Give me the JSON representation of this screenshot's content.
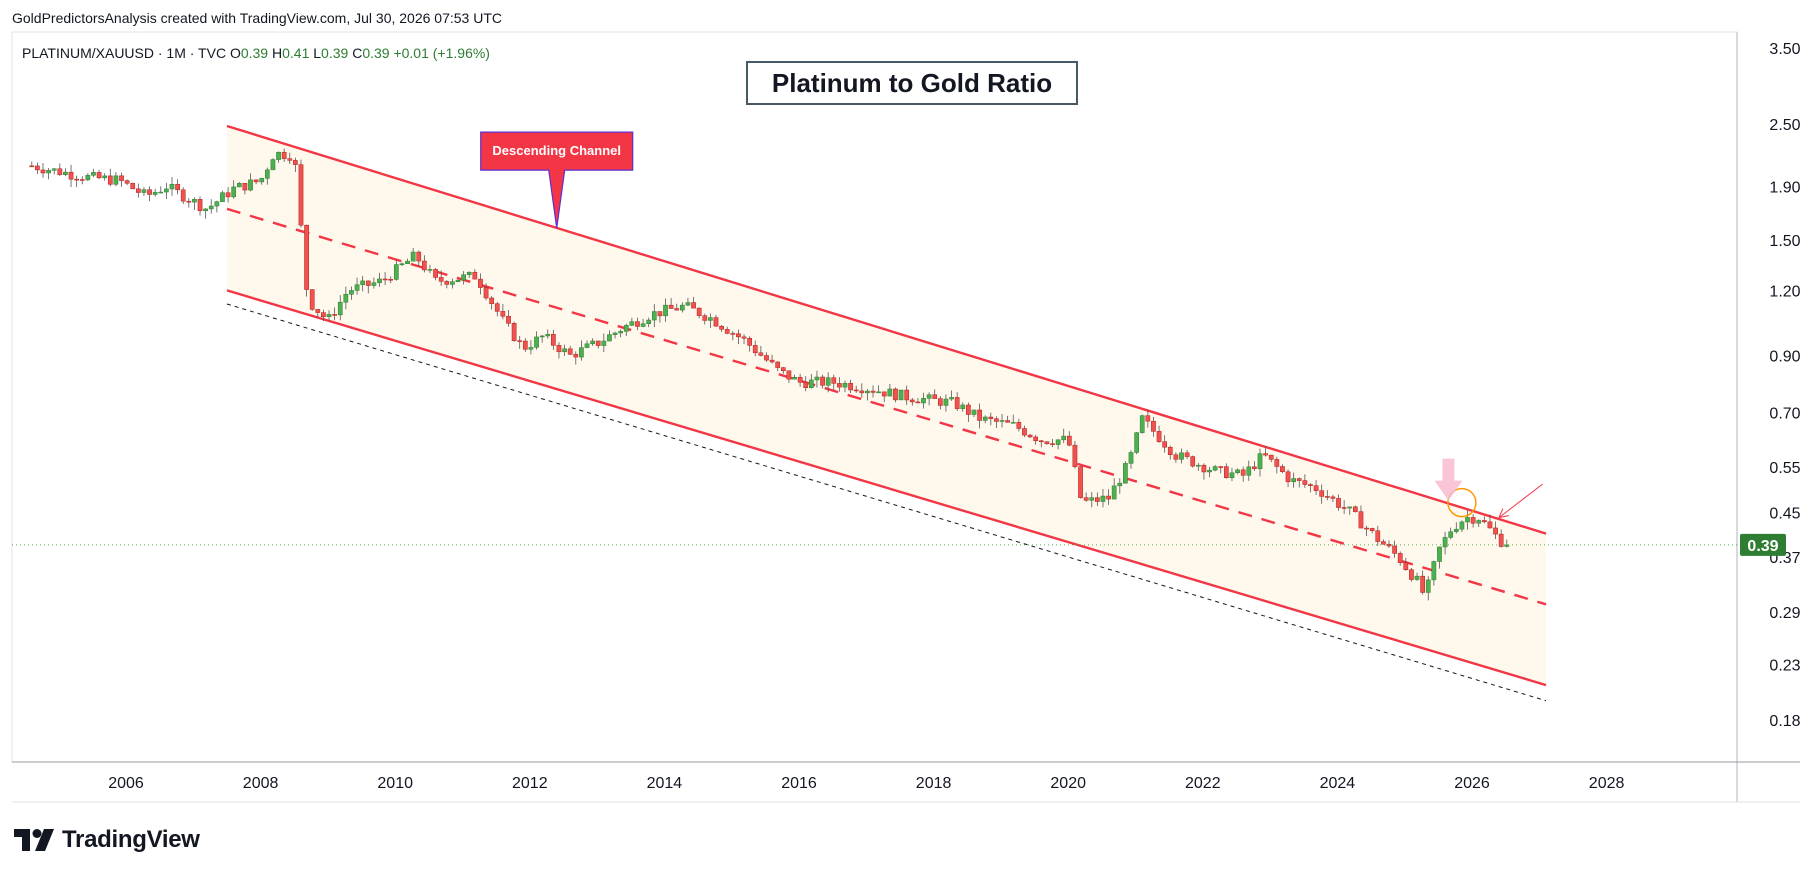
{
  "header": {
    "attribution": "GoldPredictorsAnalysis created with TradingView.com, Jul 30, 2026 07:53 UTC"
  },
  "legend": {
    "symbol": "PLATINUM/XAUUSD · 1M · TVC",
    "open_label": "O",
    "open": "0.39",
    "high_label": "H",
    "high": "0.41",
    "low_label": "L",
    "low": "0.39",
    "close_label": "C",
    "close": "0.39",
    "change": "+0.01 (+1.96%)"
  },
  "price_tag": "0.39",
  "footer": {
    "brand": "TradingView",
    "logo_icon": "tradingview-logo-icon"
  },
  "colors": {
    "up": "#26a69a",
    "up_dark": "#2e7d32",
    "down": "#ef5350",
    "channel": "#f23645",
    "channel_fill": "#fff3e0",
    "price_line": "#4caf50",
    "title_border": "#455a64",
    "callout": "#f23645",
    "callout_border": "#5c2fd1"
  },
  "chart_data": {
    "type": "candlestick",
    "title": "Platinum to Gold Ratio",
    "yscale": "log",
    "ylim": [
      0.155,
      4.1
    ],
    "xlim": [
      2004.6,
      2031.3
    ],
    "x_ticks": [
      "2006",
      "2008",
      "2010",
      "2012",
      "2014",
      "2016",
      "2018",
      "2020",
      "2022",
      "2024",
      "2026",
      "2028"
    ],
    "y_ticks": [
      "3.50",
      "2.50",
      "1.90",
      "1.50",
      "1.20",
      "0.90",
      "0.70",
      "0.55",
      "0.45",
      "0.37",
      "0.29",
      "0.23",
      "0.18"
    ],
    "anchors": [
      [
        2004.6,
        2.08
      ],
      [
        2005.4,
        1.98
      ],
      [
        2005.9,
        1.95
      ],
      [
        2006.3,
        1.82
      ],
      [
        2006.6,
        1.9
      ],
      [
        2007.2,
        1.72
      ],
      [
        2007.6,
        1.88
      ],
      [
        2008.0,
        1.95
      ],
      [
        2008.2,
        2.2
      ],
      [
        2008.5,
        2.18
      ],
      [
        2008.7,
        1.15
      ],
      [
        2009.0,
        1.05
      ],
      [
        2009.3,
        1.2
      ],
      [
        2009.8,
        1.25
      ],
      [
        2010.3,
        1.4
      ],
      [
        2010.6,
        1.25
      ],
      [
        2011.2,
        1.28
      ],
      [
        2011.6,
        1.05
      ],
      [
        2011.9,
        0.93
      ],
      [
        2012.2,
        0.98
      ],
      [
        2012.6,
        0.9
      ],
      [
        2013.0,
        0.95
      ],
      [
        2013.4,
        1.02
      ],
      [
        2013.8,
        1.08
      ],
      [
        2014.3,
        1.12
      ],
      [
        2014.7,
        1.06
      ],
      [
        2015.2,
        0.96
      ],
      [
        2015.7,
        0.84
      ],
      [
        2016.0,
        0.8
      ],
      [
        2016.5,
        0.8
      ],
      [
        2017.0,
        0.78
      ],
      [
        2017.6,
        0.75
      ],
      [
        2018.3,
        0.73
      ],
      [
        2018.7,
        0.68
      ],
      [
        2019.2,
        0.66
      ],
      [
        2019.6,
        0.62
      ],
      [
        2020.0,
        0.62
      ],
      [
        2020.2,
        0.47
      ],
      [
        2020.6,
        0.48
      ],
      [
        2020.9,
        0.56
      ],
      [
        2021.1,
        0.68
      ],
      [
        2021.6,
        0.58
      ],
      [
        2022.2,
        0.54
      ],
      [
        2022.6,
        0.53
      ],
      [
        2022.9,
        0.58
      ],
      [
        2023.3,
        0.52
      ],
      [
        2023.7,
        0.5
      ],
      [
        2024.2,
        0.45
      ],
      [
        2024.6,
        0.4
      ],
      [
        2024.9,
        0.37
      ],
      [
        2025.2,
        0.33
      ],
      [
        2025.3,
        0.31
      ],
      [
        2025.5,
        0.38
      ],
      [
        2025.7,
        0.42
      ],
      [
        2025.9,
        0.44
      ],
      [
        2026.1,
        0.44
      ],
      [
        2026.4,
        0.4
      ],
      [
        2026.5,
        0.39
      ]
    ],
    "last_close": 0.39,
    "channel": {
      "upper": [
        [
          2007.5,
          2.48
        ],
        [
          2027.1,
          0.41
        ]
      ],
      "middle": [
        [
          2007.5,
          1.72
        ],
        [
          2027.1,
          0.3
        ]
      ],
      "lower": [
        [
          2007.5,
          1.2
        ],
        [
          2027.1,
          0.21
        ]
      ],
      "extension": [
        [
          2007.5,
          1.13
        ],
        [
          2027.1,
          0.196
        ]
      ]
    },
    "annotations": [
      {
        "text": "Descending Channel",
        "at": [
          2012.4,
          1.58
        ]
      }
    ],
    "arrows": [
      {
        "label": "pink-down-arrow",
        "at": [
          2025.65,
          0.5
        ]
      },
      {
        "label": "red-pointer-arrow",
        "from": [
          2027.05,
          0.51
        ],
        "to": [
          2026.4,
          0.44
        ]
      }
    ],
    "highlight_circle": [
      2025.85,
      0.47
    ]
  }
}
